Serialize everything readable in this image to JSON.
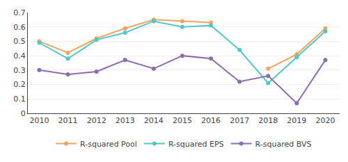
{
  "chart_data": {
    "type": "line",
    "x": [
      2010,
      2011,
      2012,
      2013,
      2014,
      2015,
      2016,
      2017,
      2018,
      2019,
      2020
    ],
    "series": [
      {
        "name": "R-squared Pool",
        "color": "#F4A460",
        "values": [
          0.5,
          0.42,
          0.52,
          0.59,
          0.65,
          0.64,
          0.63,
          null,
          0.31,
          0.41,
          0.59
        ]
      },
      {
        "name": "R-squared EPS",
        "color": "#4EC8C8",
        "values": [
          0.49,
          0.38,
          0.51,
          0.56,
          0.64,
          0.6,
          0.61,
          0.44,
          0.21,
          0.39,
          0.57
        ]
      },
      {
        "name": "R-squared BVS",
        "color": "#8B6BB1",
        "values": [
          0.3,
          0.27,
          0.29,
          0.37,
          0.31,
          0.4,
          0.38,
          0.22,
          0.26,
          0.07,
          0.37
        ]
      }
    ],
    "marker": "circle",
    "xlim": [
      2009.6,
      2020.5
    ],
    "xticks": [
      2010,
      2011,
      2012,
      2013,
      2014,
      2015,
      2016,
      2017,
      2018,
      2019,
      2020
    ],
    "ylim": [
      0,
      0.7
    ],
    "yticks": [
      0,
      0.1,
      0.2,
      0.3,
      0.4,
      0.5,
      0.6,
      0.7
    ],
    "grid": "y",
    "legend": "bottom"
  }
}
